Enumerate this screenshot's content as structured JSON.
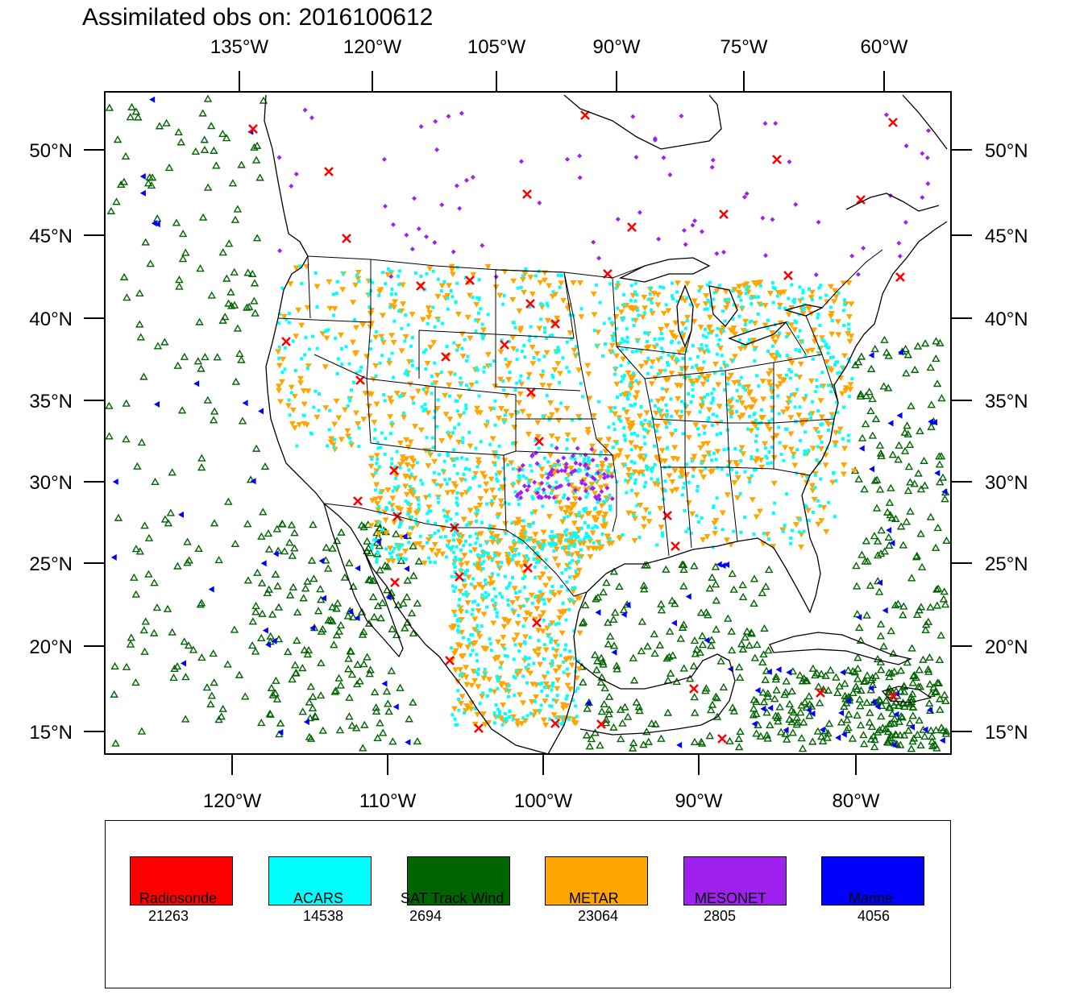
{
  "header": {
    "title_prefix": "Assimilated obs on:",
    "title_date": "2016100612"
  },
  "axes": {
    "top_lon_labels": [
      "135°W",
      "120°W",
      "105°W",
      "90°W",
      "75°W",
      "60°W"
    ],
    "bottom_lon_labels": [
      "120°W",
      "110°W",
      "100°W",
      "90°W",
      "80°W"
    ],
    "lat_labels": [
      "50°N",
      "45°N",
      "40°N",
      "35°N",
      "30°N",
      "25°N",
      "20°N",
      "15°N"
    ]
  },
  "legend": {
    "items": [
      {
        "name": "Radiosonde",
        "count": "21263",
        "color": "#ff0000"
      },
      {
        "name": "ACARS",
        "count": "14538",
        "color": "#00ffff"
      },
      {
        "name": "SAT Track Wind",
        "count": "2694",
        "color": "#006400"
      },
      {
        "name": "METAR",
        "count": "23064",
        "color": "#ffa500"
      },
      {
        "name": "MESONET",
        "count": "2805",
        "color": "#a020f0"
      },
      {
        "name": "Marine",
        "count": "4056",
        "color": "#0000ff"
      }
    ]
  },
  "colors": {
    "radiosonde": "#ff0000",
    "acars": "#00ffff",
    "sat_track_wind": "#006400",
    "metar": "#ffa500",
    "mesonet": "#a020f0",
    "marine": "#0000ff",
    "coastline": "#000000"
  }
}
